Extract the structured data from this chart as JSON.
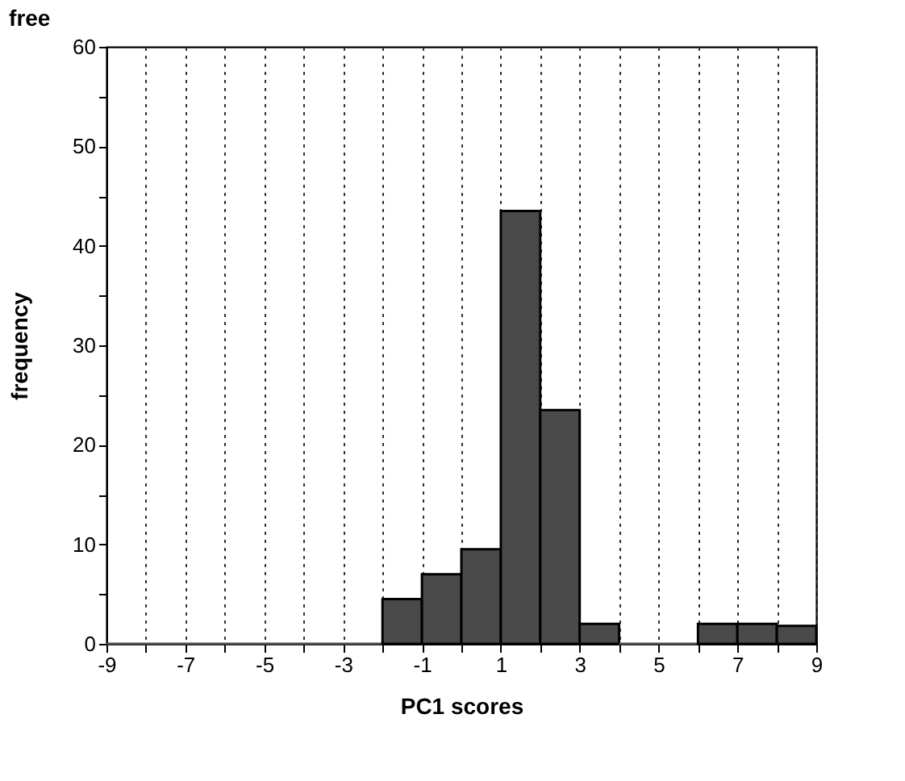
{
  "chart_data": {
    "type": "histogram",
    "title": "free",
    "xlabel": "PC1 scores",
    "ylabel": "frequency",
    "bins": [
      -9,
      -8,
      -7,
      -6,
      -5,
      -4,
      -3,
      -2,
      -1,
      0,
      1,
      2,
      3,
      4,
      5,
      6,
      7,
      8,
      9
    ],
    "values": [
      0,
      0,
      0,
      0,
      0,
      0,
      0,
      4.5,
      7,
      9.5,
      43.5,
      23.5,
      2,
      0,
      0,
      2,
      2,
      1.8
    ],
    "color": "#4a4a4a",
    "xlim": [
      -9,
      9
    ],
    "xticks": [
      -9,
      {
        "value": -8,
        "label": null
      },
      -7,
      {
        "value": -6,
        "label": null
      },
      -5,
      {
        "value": -4,
        "label": null
      },
      -3,
      {
        "value": -2,
        "label": null
      },
      -1,
      {
        "value": 0,
        "label": null
      },
      1,
      {
        "value": 2,
        "label": null
      },
      3,
      {
        "value": 4,
        "label": null
      },
      5,
      {
        "value": 6,
        "label": null
      },
      7,
      {
        "value": 8,
        "label": null
      },
      9
    ],
    "ylim": [
      0,
      60
    ],
    "yticks": [
      0,
      {
        "value": 5,
        "label": null
      },
      10,
      {
        "value": 15,
        "label": null
      },
      20,
      {
        "value": 25,
        "label": null
      },
      30,
      {
        "value": 35,
        "label": null
      },
      40,
      {
        "value": 45,
        "label": null
      },
      50,
      {
        "value": 55,
        "label": null
      },
      60
    ],
    "grid": "x"
  }
}
